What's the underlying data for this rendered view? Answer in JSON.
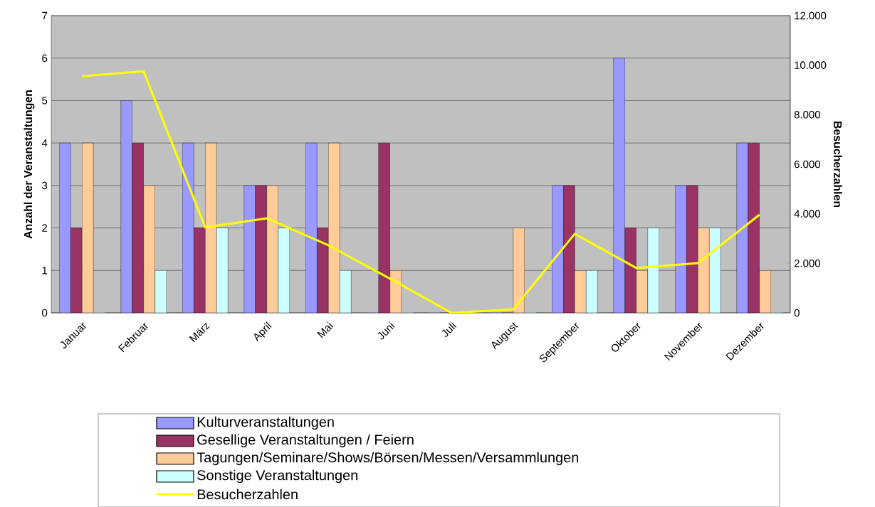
{
  "chart_data": {
    "type": "bar",
    "categories": [
      "Januar",
      "Februar",
      "März",
      "April",
      "Mai",
      "Juni",
      "Juli",
      "August",
      "September",
      "Oktober",
      "November",
      "Dezember"
    ],
    "series": [
      {
        "name": "Kulturveranstaltungen",
        "color": "#9999ff",
        "values": [
          4,
          5,
          4,
          3,
          4,
          0,
          0,
          0,
          3,
          6,
          3,
          4
        ]
      },
      {
        "name": "Gesellige Veranstaltungen / Feiern",
        "color": "#993366",
        "values": [
          2,
          4,
          2,
          3,
          2,
          4,
          0,
          0,
          3,
          2,
          3,
          4
        ]
      },
      {
        "name": "Tagungen/Seminare/Shows/Börsen/Messen/Versammlungen",
        "color": "#ffcc99",
        "values": [
          4,
          3,
          4,
          3,
          4,
          1,
          0,
          2,
          1,
          1,
          2,
          1
        ]
      },
      {
        "name": "Sonstige Veranstaltungen",
        "color": "#ccffff",
        "values": [
          0,
          1,
          2,
          2,
          1,
          0,
          0,
          0,
          1,
          2,
          2,
          0
        ]
      },
      {
        "name": "Besucherzahlen",
        "color": "#ffff00",
        "type": "line",
        "axis": "y2",
        "values": [
          9550,
          9750,
          3450,
          3820,
          2730,
          1380,
          0,
          140,
          3190,
          1810,
          2010,
          3960
        ]
      }
    ],
    "ylabel": "Anzahl der Veranstaltungen",
    "y2label": "Besucherzahlen",
    "ylim": [
      0,
      7
    ],
    "yticks": [
      0,
      1,
      2,
      3,
      4,
      5,
      6,
      7
    ],
    "y2lim": [
      0,
      12000
    ],
    "y2ticks": [
      0,
      {
        "value": 2000,
        "label": "2.000"
      },
      {
        "value": 4000,
        "label": "4.000"
      },
      {
        "value": 6000,
        "label": "6.000"
      },
      {
        "value": 8000,
        "label": "8.000"
      },
      {
        "value": 10000,
        "label": "10.000"
      },
      {
        "value": 12000,
        "label": "12.000"
      }
    ],
    "grid": "y",
    "legend": "bottom"
  }
}
